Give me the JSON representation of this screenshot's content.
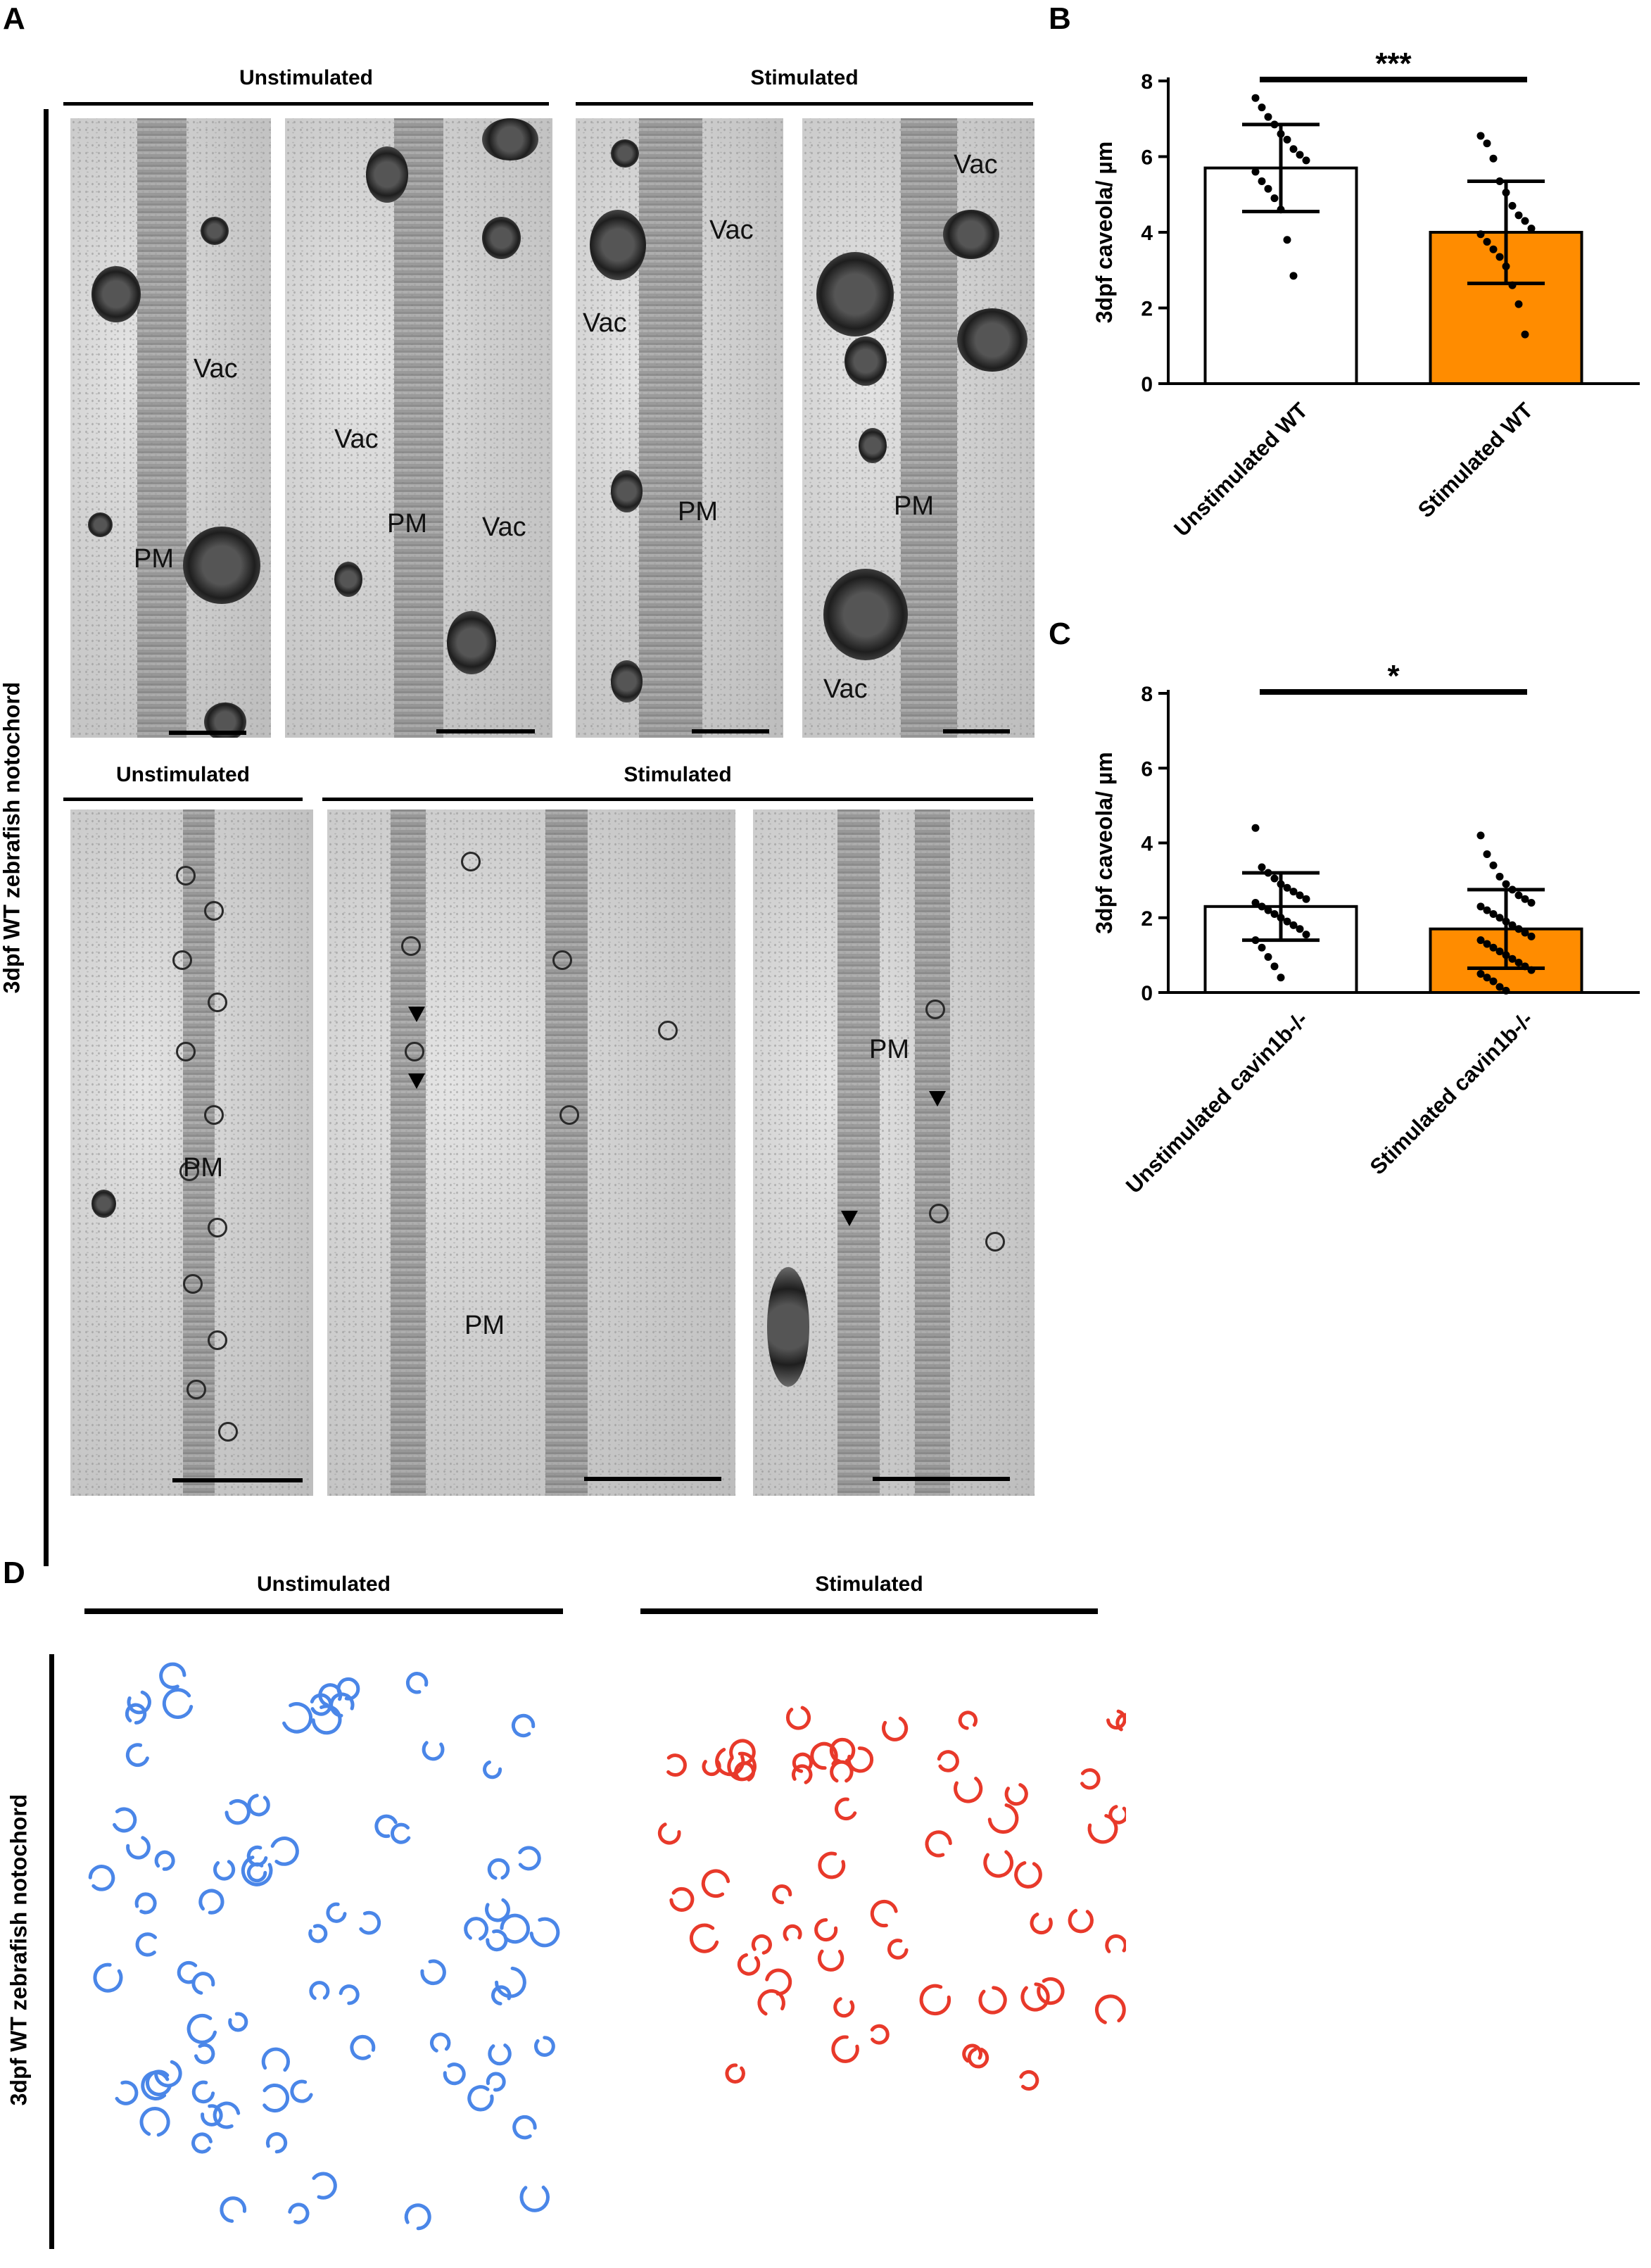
{
  "panel_a": {
    "letter": "A",
    "side_label": "3dpf WT zebrafish notochord",
    "top_headers": [
      "Unstimulated",
      "Stimulated"
    ],
    "bottom_headers": [
      "Unstimulated",
      "Stimulated"
    ],
    "labels": {
      "vac": "Vac",
      "pm": "PM"
    }
  },
  "panel_d": {
    "letter": "D",
    "side_label": "3dpf WT zebrafish notochord",
    "headers": [
      "Unstimulated",
      "Stimulated"
    ],
    "colors": {
      "unstimulated": "#4a86e8",
      "stimulated": "#e8392a"
    }
  },
  "chart_data": [
    {
      "panel": "B",
      "type": "bar",
      "ylabel": "3dpf caveola/ µm",
      "ylim": [
        0,
        8
      ],
      "yticks": [
        0,
        2,
        4,
        6,
        8
      ],
      "categories": [
        "Unstimulated WT",
        "Stimulated WT"
      ],
      "values": [
        5.7,
        4.0
      ],
      "sd": [
        1.15,
        1.35
      ],
      "bar_colors": [
        "#ffffff",
        "#ff8c00"
      ],
      "significance": "***",
      "points": [
        [
          7.55,
          7.3,
          7.05,
          6.85,
          6.6,
          6.45,
          6.2,
          6.05,
          5.9,
          5.6,
          5.35,
          5.15,
          4.9,
          4.6,
          3.8,
          2.85
        ],
        [
          6.55,
          6.35,
          5.95,
          5.35,
          5.05,
          4.7,
          4.45,
          4.3,
          4.1,
          3.95,
          3.75,
          3.55,
          3.35,
          3.1,
          2.6,
          2.1,
          1.3
        ]
      ]
    },
    {
      "panel": "C",
      "type": "bar",
      "ylabel": "3dpf caveola/ µm",
      "ylim": [
        0,
        8
      ],
      "yticks": [
        0,
        2,
        4,
        6,
        8
      ],
      "categories": [
        "Unstimulated cavin1b-/-",
        "Stimulated cavin1b-/-"
      ],
      "values": [
        2.3,
        1.7
      ],
      "sd": [
        0.9,
        1.05
      ],
      "bar_colors": [
        "#ffffff",
        "#ff8c00"
      ],
      "significance": "*",
      "points": [
        [
          4.4,
          3.35,
          3.2,
          3.05,
          2.9,
          2.8,
          2.7,
          2.6,
          2.5,
          2.4,
          2.3,
          2.2,
          2.1,
          2.0,
          1.9,
          1.8,
          1.7,
          1.55,
          1.4,
          1.2,
          0.95,
          0.7,
          0.4
        ],
        [
          4.2,
          3.7,
          3.4,
          3.1,
          2.9,
          2.75,
          2.6,
          2.5,
          2.4,
          2.3,
          2.2,
          2.1,
          2.0,
          1.9,
          1.8,
          1.7,
          1.6,
          1.5,
          1.4,
          1.3,
          1.2,
          1.1,
          1.0,
          0.9,
          0.8,
          0.7,
          0.6,
          0.5,
          0.4,
          0.3,
          0.15,
          0.05
        ]
      ]
    }
  ]
}
